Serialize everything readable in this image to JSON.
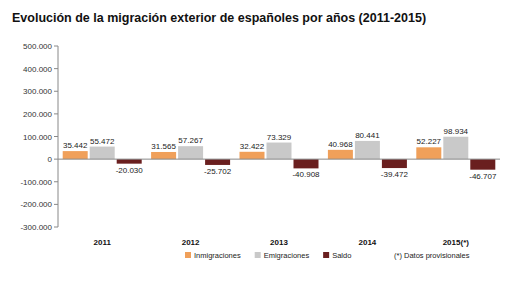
{
  "chart_data": {
    "type": "bar",
    "title": "Evolución de la migración exterior de españoles por años (2011-2015)",
    "categories": [
      "2011",
      "2012",
      "2013",
      "2014",
      "2015(*)"
    ],
    "series": [
      {
        "name": "Inmigraciones",
        "color": "#f0a05a",
        "values": [
          35442,
          31565,
          32422,
          40968,
          52227
        ],
        "value_labels": [
          "35.442",
          "31.565",
          "32.422",
          "40.968",
          "52.227"
        ]
      },
      {
        "name": "Emigraciones",
        "color": "#c9c9c9",
        "values": [
          55472,
          57267,
          73329,
          80441,
          98934
        ],
        "value_labels": [
          "55.472",
          "57.267",
          "73.329",
          "80.441",
          "98.934"
        ]
      },
      {
        "name": "Saldo",
        "color": "#6a1f1f",
        "values": [
          -20030,
          -25702,
          -40908,
          -39472,
          -46707
        ],
        "value_labels": [
          "-20.030",
          "-25.702",
          "-40.908",
          "-39.472",
          "-46.707"
        ]
      }
    ],
    "ylim": [
      -300000,
      500000
    ],
    "yticks": [
      {
        "value": -300000,
        "label": "-300.000"
      },
      {
        "value": -200000,
        "label": "-200.000"
      },
      {
        "value": -100000,
        "label": "-100.000"
      },
      0,
      {
        "value": 100000,
        "label": "100.000"
      },
      {
        "value": 200000,
        "label": "200.000"
      },
      {
        "value": 300000,
        "label": "300.000"
      },
      {
        "value": 400000,
        "label": "400.000"
      },
      {
        "value": 500000,
        "label": "500.000"
      }
    ],
    "grid": false,
    "data_labels": true,
    "legend": "bottom",
    "annotations": [
      "(*) Datos provisionales"
    ]
  }
}
